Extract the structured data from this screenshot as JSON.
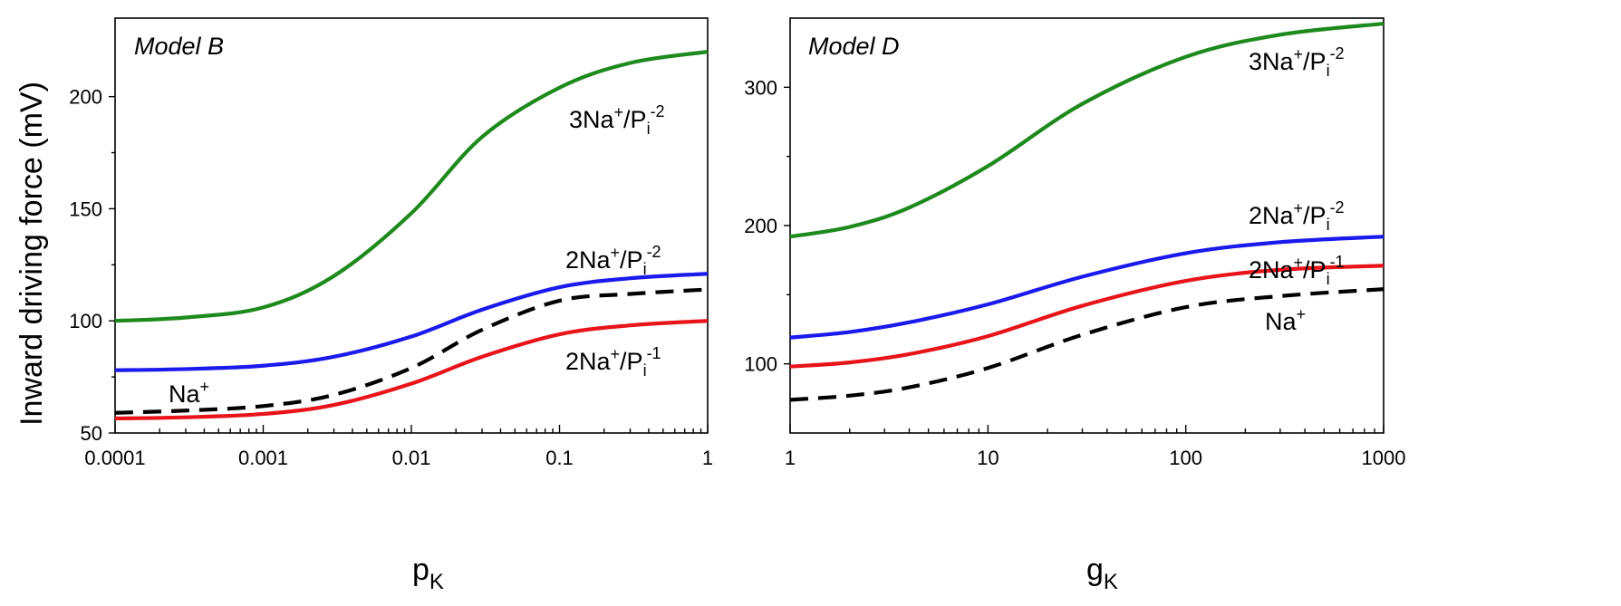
{
  "y_axis_title": "Inward driving force (mV)",
  "chart_data": [
    {
      "type": "line",
      "panel_title": "Model B",
      "xlabel": "p",
      "xlabel_sub": "K",
      "xscale": "log",
      "xlim": [
        0.0001,
        1
      ],
      "ylim": [
        50,
        235
      ],
      "xticks": [
        0.0001,
        0.001,
        0.01,
        0.1,
        1
      ],
      "xtick_labels": [
        "0.0001",
        "0.001",
        "0.01",
        "0.1",
        "1"
      ],
      "yticks": [
        50,
        100,
        150,
        200
      ],
      "ytick_labels": [
        "50",
        "100",
        "150",
        "200"
      ],
      "grid": false,
      "legend": "none",
      "x": [
        0.0001,
        0.0003,
        0.001,
        0.003,
        0.01,
        0.03,
        0.1,
        0.3,
        1
      ],
      "series": [
        {
          "name": "3Na+/Pi-2",
          "color": "#1e8a1e",
          "dash": "solid",
          "values": [
            100,
            101.5,
            106,
            120,
            148,
            182,
            204,
            215,
            220
          ]
        },
        {
          "name": "2Na+/Pi-2",
          "color": "#1a1aee",
          "dash": "solid",
          "values": [
            78,
            78.5,
            80,
            84,
            93,
            105,
            115,
            119,
            121
          ]
        },
        {
          "name": "Na+",
          "color": "#000000",
          "dash": "dashed",
          "values": [
            59,
            60,
            62,
            67,
            79,
            96,
            109,
            112,
            114
          ]
        },
        {
          "name": "2Na+/Pi-1",
          "color": "#e8141a",
          "dash": "solid",
          "values": [
            56.5,
            57,
            58.5,
            62.5,
            72,
            84,
            94,
            98,
            100
          ]
        }
      ],
      "series_labels": [
        {
          "series": "3Na+/Pi-2",
          "main": "3Na",
          "sup1": "+",
          "mid": "/P",
          "sub": "i",
          "sup2": "-2"
        },
        {
          "series": "2Na+/Pi-2",
          "main": "2Na",
          "sup1": "+",
          "mid": "/P",
          "sub": "i",
          "sup2": "-2"
        },
        {
          "series": "Na+",
          "main": "Na",
          "sup1": "+",
          "mid": "",
          "sub": "",
          "sup2": ""
        },
        {
          "series": "2Na+/Pi-1",
          "main": "2Na",
          "sup1": "+",
          "mid": "/P",
          "sub": "i",
          "sup2": "-1"
        }
      ]
    },
    {
      "type": "line",
      "panel_title": "Model D",
      "xlabel": "g",
      "xlabel_sub": "K",
      "xscale": "log",
      "xlim": [
        1,
        1000
      ],
      "ylim": [
        50,
        350
      ],
      "xticks": [
        1,
        10,
        100,
        1000
      ],
      "xtick_labels": [
        "1",
        "10",
        "100",
        "1000"
      ],
      "yticks": [
        100,
        200,
        300
      ],
      "ytick_labels": [
        "100",
        "200",
        "300"
      ],
      "grid": false,
      "legend": "none",
      "x": [
        1,
        2,
        4,
        10,
        30,
        100,
        300,
        1000
      ],
      "series": [
        {
          "name": "3Na+/Pi-2",
          "color": "#1e8a1e",
          "dash": "solid",
          "values": [
            192,
            199,
            213,
            243,
            288,
            322,
            338,
            346
          ]
        },
        {
          "name": "2Na+/Pi-2",
          "color": "#1a1aee",
          "dash": "solid",
          "values": [
            119,
            123,
            130,
            143,
            163,
            180,
            188,
            192
          ]
        },
        {
          "name": "2Na+/Pi-1",
          "color": "#e8141a",
          "dash": "solid",
          "values": [
            98,
            101,
            107,
            120,
            142,
            160,
            168,
            171
          ]
        },
        {
          "name": "Na+",
          "color": "#000000",
          "dash": "dashed",
          "values": [
            74,
            77,
            83,
            97,
            121,
            141,
            149,
            154
          ]
        }
      ],
      "series_labels": [
        {
          "series": "3Na+/Pi-2",
          "main": "3Na",
          "sup1": "+",
          "mid": "/P",
          "sub": "i",
          "sup2": "-2"
        },
        {
          "series": "2Na+/Pi-2",
          "main": "2Na",
          "sup1": "+",
          "mid": "/P",
          "sub": "i",
          "sup2": "-2"
        },
        {
          "series": "2Na+/Pi-1",
          "main": "2Na",
          "sup1": "+",
          "mid": "/P",
          "sub": "i",
          "sup2": "-1"
        },
        {
          "series": "Na+",
          "main": "Na",
          "sup1": "+",
          "mid": "",
          "sub": "",
          "sup2": ""
        }
      ]
    }
  ]
}
